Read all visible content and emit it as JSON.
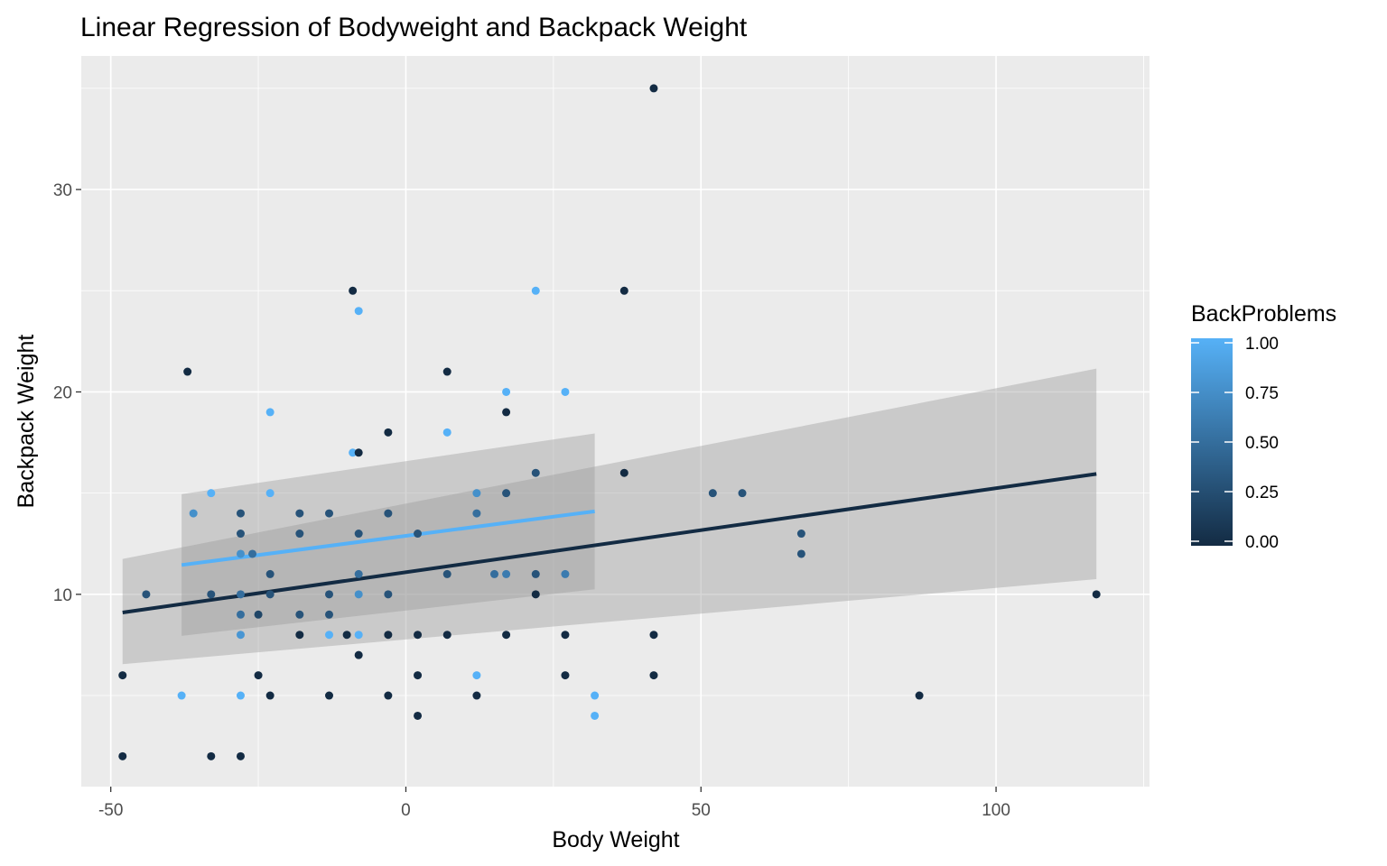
{
  "chart_data": {
    "type": "scatter",
    "title": "Linear Regression of Bodyweight and Backpack Weight",
    "xlabel": "Body Weight",
    "ylabel": "Backpack Weight",
    "xlim": [
      -55,
      126
    ],
    "ylim": [
      0.5,
      36.6
    ],
    "x_ticks": [
      -50,
      0,
      50,
      100
    ],
    "x_tick_labels": [
      "-50",
      "0",
      "50",
      "100"
    ],
    "y_ticks": [
      10,
      20,
      30
    ],
    "y_tick_labels": [
      "10",
      "20",
      "30"
    ],
    "grid": true,
    "panel_background": "#ebebeb",
    "legend": {
      "title": "BackProblems",
      "position": "right",
      "type": "colorbar",
      "breaks": [
        0,
        0.25,
        0.5,
        0.75,
        1
      ],
      "labels": [
        "0.00",
        "0.25",
        "0.50",
        "0.75",
        "1.00"
      ],
      "low_color": "#132b43",
      "high_color": "#56b1f7"
    },
    "points": [
      {
        "x": -48,
        "y": 6,
        "c": 0
      },
      {
        "x": -48,
        "y": 2,
        "c": 0
      },
      {
        "x": -44,
        "y": 10,
        "c": 0.3
      },
      {
        "x": -38,
        "y": 5,
        "c": 1
      },
      {
        "x": -37,
        "y": 21,
        "c": 0
      },
      {
        "x": -36,
        "y": 14,
        "c": 0.75
      },
      {
        "x": -33,
        "y": 15,
        "c": 1
      },
      {
        "x": -33,
        "y": 10,
        "c": 0.3
      },
      {
        "x": -33,
        "y": 2,
        "c": 0
      },
      {
        "x": -28,
        "y": 14,
        "c": 0.3
      },
      {
        "x": -28,
        "y": 13,
        "c": 0.3
      },
      {
        "x": -28,
        "y": 12,
        "c": 0.75
      },
      {
        "x": -28,
        "y": 10,
        "c": 0.5
      },
      {
        "x": -28,
        "y": 9,
        "c": 0.5
      },
      {
        "x": -28,
        "y": 8,
        "c": 0.8
      },
      {
        "x": -28,
        "y": 5,
        "c": 1
      },
      {
        "x": -28,
        "y": 2,
        "c": 0
      },
      {
        "x": -26,
        "y": 12,
        "c": 0.5
      },
      {
        "x": -25,
        "y": 9,
        "c": 0.2
      },
      {
        "x": -25,
        "y": 6,
        "c": 0
      },
      {
        "x": -23,
        "y": 19,
        "c": 1
      },
      {
        "x": -23,
        "y": 15,
        "c": 1
      },
      {
        "x": -23,
        "y": 11,
        "c": 0.3
      },
      {
        "x": -23,
        "y": 10,
        "c": 0.3
      },
      {
        "x": -23,
        "y": 5,
        "c": 0
      },
      {
        "x": -18,
        "y": 14,
        "c": 0.3
      },
      {
        "x": -18,
        "y": 13,
        "c": 0.3
      },
      {
        "x": -18,
        "y": 9,
        "c": 0.3
      },
      {
        "x": -18,
        "y": 8,
        "c": 0
      },
      {
        "x": -13,
        "y": 14,
        "c": 0.3
      },
      {
        "x": -13,
        "y": 10,
        "c": 0.3
      },
      {
        "x": -13,
        "y": 9,
        "c": 0.3
      },
      {
        "x": -13,
        "y": 8,
        "c": 1
      },
      {
        "x": -13,
        "y": 5,
        "c": 0
      },
      {
        "x": -10,
        "y": 8,
        "c": 0
      },
      {
        "x": -9,
        "y": 25,
        "c": 0
      },
      {
        "x": -9,
        "y": 17,
        "c": 1
      },
      {
        "x": -8,
        "y": 24,
        "c": 1
      },
      {
        "x": -8,
        "y": 17,
        "c": 0
      },
      {
        "x": -8,
        "y": 13,
        "c": 0.3
      },
      {
        "x": -8,
        "y": 11,
        "c": 0.5
      },
      {
        "x": -8,
        "y": 10,
        "c": 0.75
      },
      {
        "x": -8,
        "y": 8,
        "c": 1
      },
      {
        "x": -8,
        "y": 7,
        "c": 0
      },
      {
        "x": -3,
        "y": 18,
        "c": 0
      },
      {
        "x": -3,
        "y": 14,
        "c": 0.3
      },
      {
        "x": -3,
        "y": 10,
        "c": 0.3
      },
      {
        "x": -3,
        "y": 8,
        "c": 0
      },
      {
        "x": -3,
        "y": 5,
        "c": 0
      },
      {
        "x": 2,
        "y": 13,
        "c": 0.3
      },
      {
        "x": 2,
        "y": 8,
        "c": 0
      },
      {
        "x": 2,
        "y": 6,
        "c": 0
      },
      {
        "x": 2,
        "y": 4,
        "c": 0
      },
      {
        "x": 7,
        "y": 21,
        "c": 0
      },
      {
        "x": 7,
        "y": 18,
        "c": 1
      },
      {
        "x": 7,
        "y": 11,
        "c": 0.3
      },
      {
        "x": 7,
        "y": 8,
        "c": 0
      },
      {
        "x": 12,
        "y": 15,
        "c": 0.75
      },
      {
        "x": 12,
        "y": 14,
        "c": 0.5
      },
      {
        "x": 12,
        "y": 6,
        "c": 1
      },
      {
        "x": 12,
        "y": 5,
        "c": 0
      },
      {
        "x": 15,
        "y": 11,
        "c": 0.5
      },
      {
        "x": 17,
        "y": 20,
        "c": 1
      },
      {
        "x": 17,
        "y": 19,
        "c": 0
      },
      {
        "x": 17,
        "y": 15,
        "c": 0.3
      },
      {
        "x": 17,
        "y": 11,
        "c": 0.6
      },
      {
        "x": 17,
        "y": 8,
        "c": 0
      },
      {
        "x": 22,
        "y": 25,
        "c": 1
      },
      {
        "x": 22,
        "y": 16,
        "c": 0.3
      },
      {
        "x": 22,
        "y": 11,
        "c": 0.3
      },
      {
        "x": 22,
        "y": 10,
        "c": 0
      },
      {
        "x": 27,
        "y": 20,
        "c": 1
      },
      {
        "x": 27,
        "y": 11,
        "c": 0.6
      },
      {
        "x": 27,
        "y": 8,
        "c": 0
      },
      {
        "x": 27,
        "y": 6,
        "c": 0
      },
      {
        "x": 32,
        "y": 5,
        "c": 1
      },
      {
        "x": 32,
        "y": 4,
        "c": 1
      },
      {
        "x": 37,
        "y": 25,
        "c": 0
      },
      {
        "x": 37,
        "y": 16,
        "c": 0
      },
      {
        "x": 42,
        "y": 35,
        "c": 0
      },
      {
        "x": 42,
        "y": 8,
        "c": 0
      },
      {
        "x": 42,
        "y": 6,
        "c": 0
      },
      {
        "x": 52,
        "y": 15,
        "c": 0.3
      },
      {
        "x": 57,
        "y": 15,
        "c": 0.3
      },
      {
        "x": 67,
        "y": 13,
        "c": 0.3
      },
      {
        "x": 67,
        "y": 12,
        "c": 0.3
      },
      {
        "x": 87,
        "y": 5,
        "c": 0
      },
      {
        "x": 117,
        "y": 10,
        "c": 0
      }
    ],
    "regression_lines": [
      {
        "x": [
          -38,
          32
        ],
        "y": [
          11.45,
          14.1
        ],
        "c": 1,
        "ci_lower": [
          7.95,
          10.25
        ],
        "ci_upper": [
          14.95,
          17.95
        ],
        "ci_at_x": [
          -38,
          32
        ]
      },
      {
        "x": [
          -48,
          117
        ],
        "y": [
          9.1,
          15.95
        ],
        "c": 0,
        "ci_lower": [
          6.55,
          10.75
        ],
        "ci_upper": [
          11.75,
          21.15
        ],
        "ci_at_x": [
          -48,
          117
        ]
      }
    ]
  }
}
